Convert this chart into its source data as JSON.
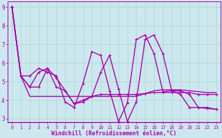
{
  "xlabel": "Windchill (Refroidissement éolien,°C)",
  "background_color": "#cce8ee",
  "grid_color": "#aad4cc",
  "line_color": "#aa00aa",
  "plot_bg": "#cce8ee",
  "spine_color": "#aa00aa",
  "tick_color": "#aa00aa",
  "xlim": [
    -0.5,
    23.5
  ],
  "ylim": [
    2.8,
    9.3
  ],
  "yticks": [
    3,
    4,
    5,
    6,
    7,
    8,
    9
  ],
  "xticks": [
    0,
    1,
    2,
    3,
    4,
    5,
    6,
    7,
    8,
    9,
    10,
    11,
    12,
    13,
    14,
    15,
    16,
    17,
    18,
    19,
    20,
    21,
    22,
    23
  ],
  "line1_y": [
    9.0,
    5.3,
    5.3,
    5.7,
    5.5,
    5.3,
    3.9,
    3.6,
    4.9,
    6.6,
    6.4,
    4.5,
    2.85,
    3.85,
    7.25,
    7.5,
    6.5,
    4.45,
    4.5,
    4.3,
    3.6,
    3.6,
    3.55,
    3.5
  ],
  "line2_y": [
    9.0,
    5.3,
    4.2,
    4.2,
    4.2,
    4.2,
    4.2,
    4.2,
    4.2,
    4.2,
    4.2,
    4.2,
    4.2,
    4.2,
    4.2,
    4.35,
    4.5,
    4.55,
    4.55,
    4.55,
    4.5,
    4.45,
    4.4,
    4.4
  ],
  "line3_y": [
    9.0,
    5.3,
    4.7,
    4.7,
    5.7,
    4.7,
    4.5,
    3.8,
    4.0,
    4.2,
    4.3,
    4.3,
    4.3,
    4.3,
    4.3,
    4.35,
    4.4,
    4.4,
    4.4,
    4.4,
    4.4,
    4.3,
    4.3,
    4.3
  ],
  "line4_y": [
    9.0,
    5.3,
    4.7,
    5.5,
    5.7,
    5.2,
    4.5,
    3.8,
    3.9,
    4.2,
    5.5,
    6.4,
    4.6,
    2.85,
    3.9,
    7.25,
    7.5,
    6.5,
    4.5,
    4.5,
    4.3,
    3.6,
    3.6,
    3.5
  ]
}
